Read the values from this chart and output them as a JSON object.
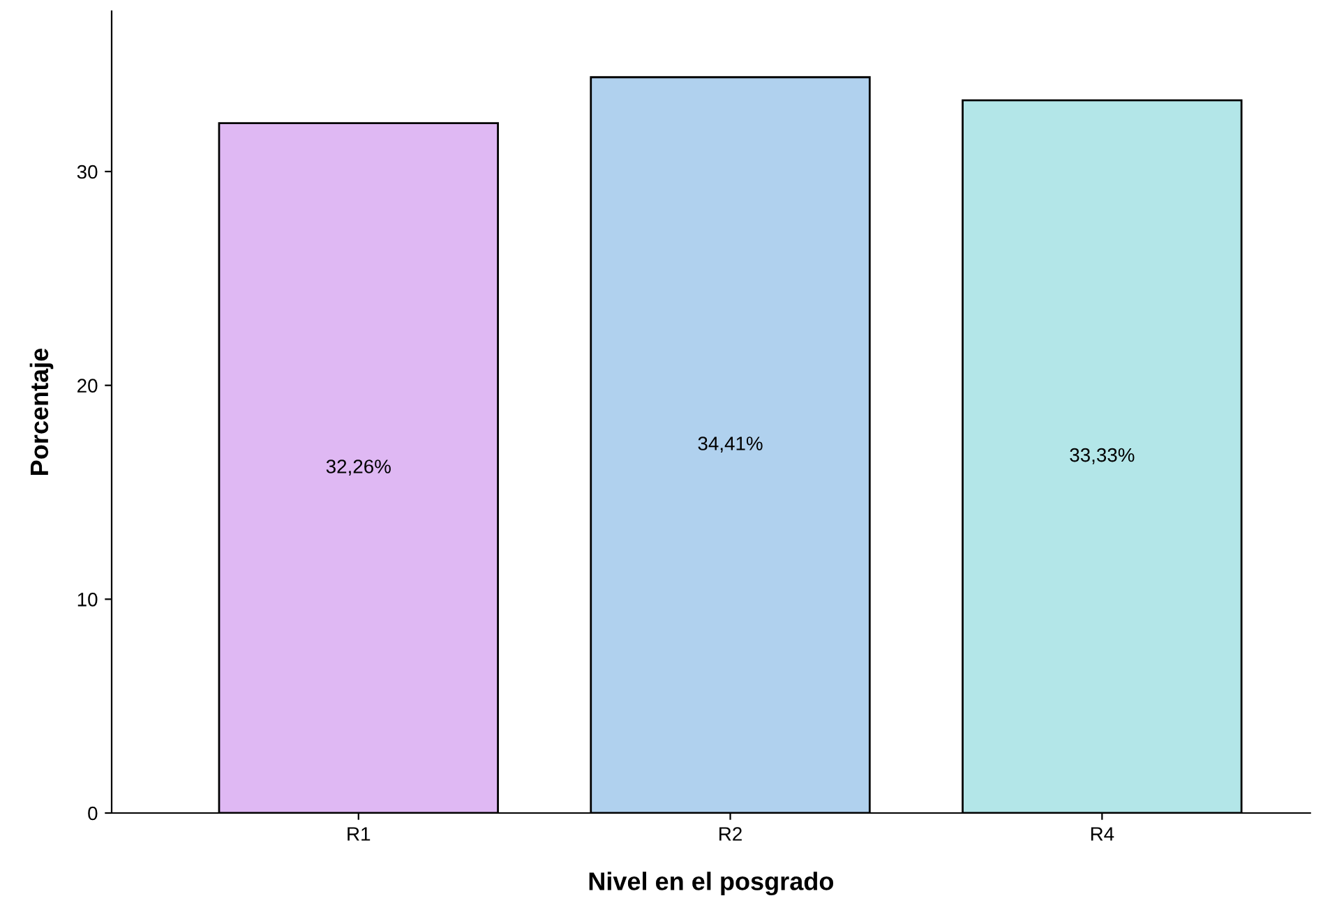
{
  "chart_data": {
    "type": "bar",
    "xlabel": "Nivel en el posgrado",
    "ylabel": "Porcentaje",
    "categories": [
      "R1",
      "R2",
      "R4"
    ],
    "values": [
      32.26,
      34.41,
      33.33
    ],
    "value_labels": [
      "32,26%",
      "34,41%",
      "33,33%"
    ],
    "colors": [
      "#dfb8f3",
      "#b0d1ee",
      "#b3e6e8"
    ],
    "ylim": [
      0,
      37.5
    ],
    "yticks": [
      0,
      10,
      20,
      30
    ],
    "grid": false,
    "legend": false
  }
}
